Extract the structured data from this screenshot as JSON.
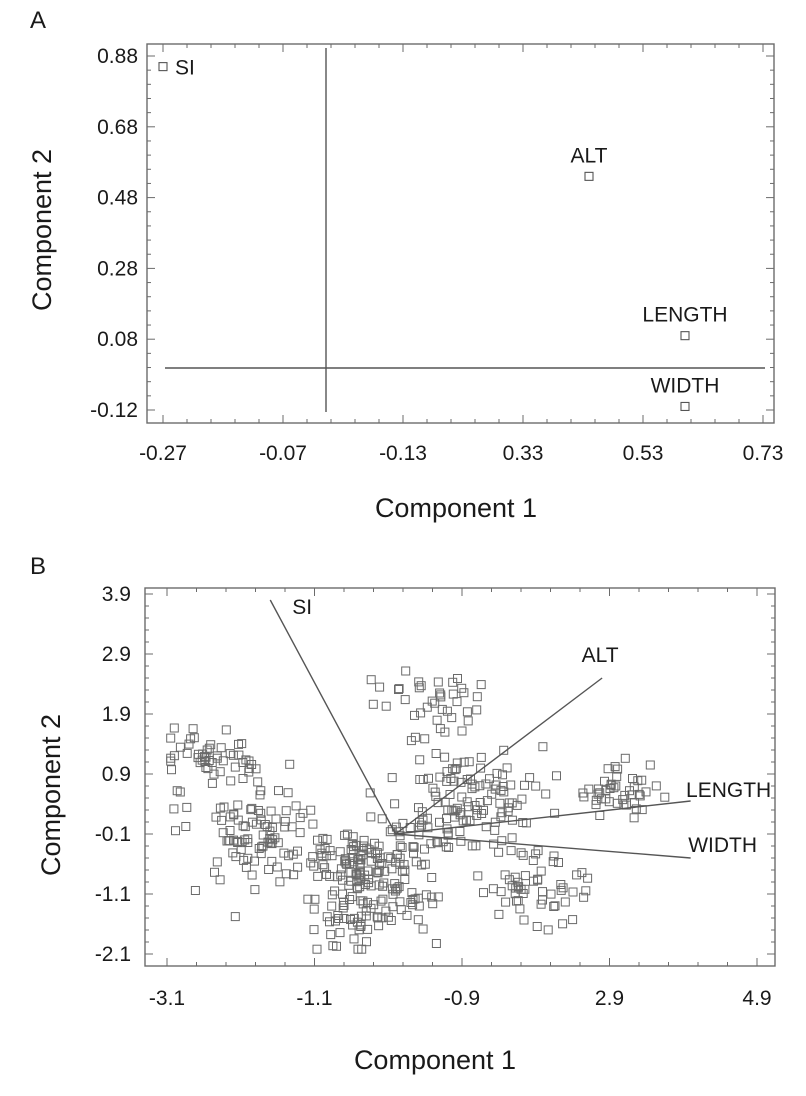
{
  "chart_data": [
    {
      "panel": "A",
      "type": "scatter",
      "xlabel": "Component 1",
      "ylabel": "Component 2",
      "x_ticks": [
        "-0.27",
        "-0.07",
        "-0.13",
        "0.33",
        "0.53",
        "0.73"
      ],
      "y_ticks": [
        "0.88",
        "0.68",
        "0.48",
        "0.28",
        "0.08",
        "-0.12"
      ],
      "xlim": [
        -0.27,
        0.73
      ],
      "ylim": [
        -0.12,
        0.88
      ],
      "ref_lines": {
        "x": -0.03,
        "y": 0
      },
      "points": [
        {
          "label": "SI",
          "x": -0.27,
          "y": 0.85
        },
        {
          "label": "ALT",
          "x": 0.44,
          "y": 0.54
        },
        {
          "label": "LENGTH",
          "x": 0.6,
          "y": 0.09
        },
        {
          "label": "WIDTH",
          "x": 0.6,
          "y": -0.11
        }
      ]
    },
    {
      "panel": "B",
      "type": "scatter",
      "xlabel": "Component 1",
      "ylabel": "Component 2",
      "x_ticks": [
        "-3.1",
        "-1.1",
        "-0.9",
        "2.9",
        "4.9"
      ],
      "y_ticks": [
        "3.9",
        "2.9",
        "1.9",
        "0.9",
        "-0.1",
        "-1.1",
        "-2.1"
      ],
      "xlim": [
        -3.1,
        4.9
      ],
      "ylim": [
        -2.1,
        3.9
      ],
      "biplot_origin": {
        "x": 0.0,
        "y": -0.1
      },
      "vectors": [
        {
          "label": "SI",
          "x": -1.7,
          "y": 3.8
        },
        {
          "label": "ALT",
          "x": 2.8,
          "y": 2.5
        },
        {
          "label": "LENGTH",
          "x": 4.0,
          "y": 0.45
        },
        {
          "label": "WIDTH",
          "x": 4.0,
          "y": -0.5
        }
      ],
      "clusters": [
        {
          "cx": -2.6,
          "cy": 1.2,
          "sx": 0.32,
          "sy": 0.22,
          "n": 45
        },
        {
          "cx": -1.9,
          "cy": -0.05,
          "sx": 0.4,
          "sy": 0.45,
          "n": 95
        },
        {
          "cx": -0.4,
          "cy": -0.55,
          "sx": 0.45,
          "sy": 0.4,
          "n": 140
        },
        {
          "cx": -0.4,
          "cy": -1.4,
          "sx": 0.45,
          "sy": 0.28,
          "n": 70
        },
        {
          "cx": 0.55,
          "cy": 2.05,
          "sx": 0.35,
          "sy": 0.3,
          "n": 40
        },
        {
          "cx": 1.2,
          "cy": 0.45,
          "sx": 0.45,
          "sy": 0.5,
          "n": 85
        },
        {
          "cx": 0.5,
          "cy": 0.4,
          "sx": 0.3,
          "sy": 0.35,
          "n": 30
        },
        {
          "cx": 1.9,
          "cy": -1.0,
          "sx": 0.45,
          "sy": 0.35,
          "n": 55
        },
        {
          "cx": 3.0,
          "cy": 0.6,
          "sx": 0.25,
          "sy": 0.2,
          "n": 45
        }
      ]
    }
  ]
}
